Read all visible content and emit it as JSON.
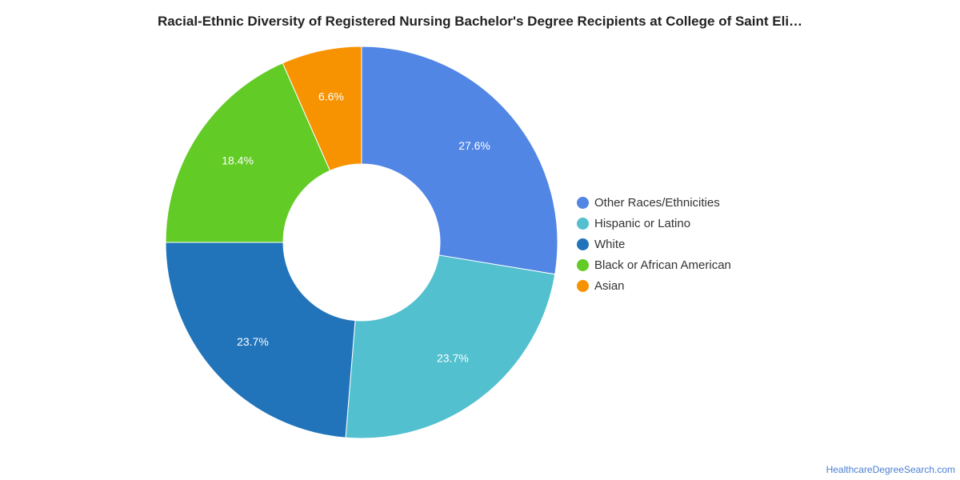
{
  "chart_data": {
    "type": "pie",
    "title": "Racial-Ethnic Diversity of Registered Nursing Bachelor's Degree Recipients at College of Saint Eli…",
    "donut": true,
    "legend_position": "right",
    "slices": [
      {
        "label": "Other Races/Ethnicities",
        "value": 27.6,
        "display": "27.6%",
        "color": "#5186E5"
      },
      {
        "label": "Hispanic or Latino",
        "value": 23.7,
        "display": "23.7%",
        "color": "#52C0CF"
      },
      {
        "label": "White",
        "value": 23.7,
        "display": "23.7%",
        "color": "#2174BA"
      },
      {
        "label": "Black or African American",
        "value": 18.4,
        "display": "18.4%",
        "color": "#62CB26"
      },
      {
        "label": "Asian",
        "value": 6.6,
        "display": "6.6%",
        "color": "#F79300"
      }
    ]
  },
  "watermark": "HealthcareDegreeSearch.com"
}
